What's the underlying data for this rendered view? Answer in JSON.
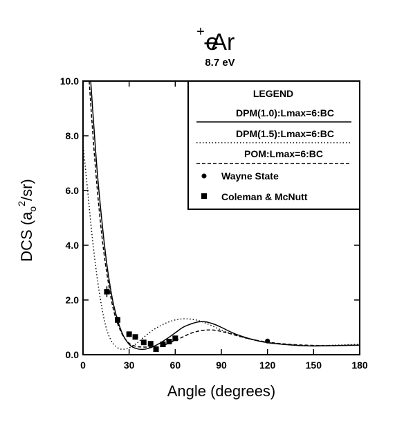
{
  "header": {
    "title_base": "e",
    "title_sup": "+",
    "title_rest": "-Ar",
    "subtitle": "8.7 eV"
  },
  "chart_data": {
    "type": "line",
    "title": "e+-Ar",
    "subtitle": "8.7 eV",
    "xlabel": "Angle (degrees)",
    "ylabel_prefix": "DCS (a",
    "ylabel_sub": "o",
    "ylabel_sup": "2",
    "ylabel_suffix": "/sr)",
    "xlim": [
      0,
      180
    ],
    "ylim": [
      0,
      10
    ],
    "xticks": [
      0,
      30,
      60,
      90,
      120,
      150,
      180
    ],
    "xtick_labels": [
      "0",
      "30",
      "60",
      "90",
      "120",
      "150",
      "180"
    ],
    "yticks": [
      0,
      2,
      4,
      6,
      8,
      10
    ],
    "ytick_labels": [
      "0.0",
      "2.0",
      "4.0",
      "6.0",
      "8.0",
      "10.0"
    ],
    "grid": false,
    "legend_position": "top-right",
    "legend_title": "LEGEND",
    "series": [
      {
        "name": "DPM(1.0):Lmax=6:BC",
        "style": "solid",
        "x": [
          5,
          8,
          10,
          13,
          16,
          20,
          25,
          30,
          35,
          40,
          45,
          50,
          55,
          60,
          65,
          70,
          75,
          80,
          85,
          90,
          95,
          100,
          110,
          120,
          130,
          140,
          150,
          160,
          170,
          180
        ],
        "y": [
          10.0,
          7.6,
          6.2,
          4.5,
          3.1,
          1.8,
          0.85,
          0.38,
          0.22,
          0.2,
          0.28,
          0.42,
          0.6,
          0.8,
          1.0,
          1.12,
          1.2,
          1.2,
          1.12,
          1.0,
          0.86,
          0.74,
          0.56,
          0.44,
          0.38,
          0.34,
          0.32,
          0.33,
          0.34,
          0.35
        ]
      },
      {
        "name": "DPM(1.5):Lmax=6:BC",
        "style": "dotted",
        "x": [
          0,
          3,
          6,
          9,
          12,
          15,
          18,
          21,
          25,
          30,
          35,
          40,
          45,
          50,
          55,
          60,
          65,
          70,
          75,
          80,
          85,
          90,
          100,
          110,
          120,
          130,
          140,
          150,
          160,
          170,
          180
        ],
        "y": [
          7.7,
          6.0,
          4.3,
          2.9,
          1.8,
          1.0,
          0.55,
          0.32,
          0.2,
          0.25,
          0.42,
          0.66,
          0.88,
          1.05,
          1.18,
          1.27,
          1.31,
          1.3,
          1.25,
          1.15,
          1.03,
          0.9,
          0.7,
          0.55,
          0.45,
          0.38,
          0.34,
          0.33,
          0.34,
          0.36,
          0.38
        ]
      },
      {
        "name": "POM:Lmax=6:BC",
        "style": "dashed",
        "x": [
          4,
          7,
          10,
          13,
          16,
          20,
          25,
          30,
          35,
          40,
          45,
          50,
          55,
          60,
          65,
          70,
          75,
          80,
          85,
          90,
          95,
          100,
          110,
          120,
          130,
          140,
          150,
          160,
          170,
          180
        ],
        "y": [
          10.0,
          7.6,
          5.6,
          4.0,
          2.8,
          1.6,
          0.8,
          0.42,
          0.3,
          0.28,
          0.28,
          0.3,
          0.4,
          0.52,
          0.65,
          0.78,
          0.86,
          0.9,
          0.9,
          0.85,
          0.78,
          0.7,
          0.56,
          0.46,
          0.4,
          0.36,
          0.34,
          0.33,
          0.34,
          0.35
        ]
      },
      {
        "name": "Wayne State",
        "style": "circle",
        "x": [
          120
        ],
        "y": [
          0.5
        ]
      },
      {
        "name": "Coleman & McNutt",
        "style": "square",
        "x": [
          15.5,
          22.5,
          30,
          34,
          39.5,
          44,
          47.5,
          52,
          56,
          60
        ],
        "y": [
          2.3,
          1.27,
          0.75,
          0.65,
          0.45,
          0.4,
          0.2,
          0.38,
          0.48,
          0.6
        ],
        "err": [
          0.2,
          0.12,
          0.09,
          0.08,
          0.06,
          0.06,
          0.05,
          0.06,
          0.06,
          0.06
        ]
      }
    ]
  }
}
